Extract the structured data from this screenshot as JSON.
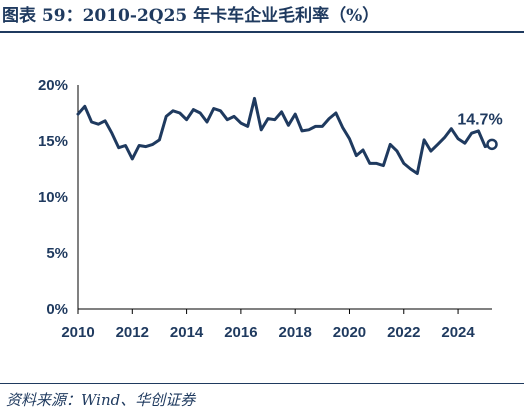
{
  "title": "图表 59：2010-2Q25 年卡车企业毛利率（%）",
  "source": "资料来源：Wind、华创证券",
  "colors": {
    "line": "#1f3a5f",
    "text": "#1f3a5f"
  },
  "chart_data": {
    "type": "line",
    "title": "",
    "xlabel": "",
    "ylabel": "",
    "x_tick_labels": [
      "2010",
      "2012",
      "2014",
      "2016",
      "2018",
      "2020",
      "2022",
      "2024"
    ],
    "y_tick_labels": [
      "0%",
      "5%",
      "10%",
      "15%",
      "20%"
    ],
    "xlim": [
      2010,
      2025.25
    ],
    "ylim": [
      0,
      20
    ],
    "series": [
      {
        "x": [
          2010.0,
          2010.25,
          2010.5,
          2010.75,
          2011.0,
          2011.25,
          2011.5,
          2011.75,
          2012.0,
          2012.25,
          2012.5,
          2012.75,
          2013.0,
          2013.25,
          2013.5,
          2013.75,
          2014.0,
          2014.25,
          2014.5,
          2014.75,
          2015.0,
          2015.25,
          2015.5,
          2015.75,
          2016.0,
          2016.25,
          2016.5,
          2016.75,
          2017.0,
          2017.25,
          2017.5,
          2017.75,
          2018.0,
          2018.25,
          2018.5,
          2018.75,
          2019.0,
          2019.25,
          2019.5,
          2019.75,
          2020.0,
          2020.25,
          2020.5,
          2020.75,
          2021.0,
          2021.25,
          2021.5,
          2021.75,
          2022.0,
          2022.25,
          2022.5,
          2022.75,
          2023.0,
          2023.25,
          2023.5,
          2023.75,
          2024.0,
          2024.25,
          2024.5,
          2024.75,
          2025.0,
          2025.25
        ],
        "values": [
          17.4,
          18.1,
          16.7,
          16.5,
          16.8,
          15.7,
          14.4,
          14.6,
          13.4,
          14.6,
          14.5,
          14.7,
          15.1,
          17.2,
          17.7,
          17.5,
          16.9,
          17.8,
          17.5,
          16.7,
          17.9,
          17.7,
          16.9,
          17.2,
          16.6,
          16.3,
          18.8,
          16.0,
          17.0,
          16.9,
          17.6,
          16.4,
          17.4,
          15.9,
          16.0,
          16.3,
          16.3,
          17.0,
          17.5,
          16.2,
          15.2,
          13.7,
          14.2,
          13.0,
          13.0,
          12.8,
          14.7,
          14.1,
          13.0,
          12.5,
          12.1,
          15.1,
          14.1,
          14.7,
          15.3,
          16.1,
          15.2,
          14.8,
          15.7,
          15.9,
          14.5,
          14.7
        ]
      }
    ],
    "annotation": {
      "text": "14.7%",
      "x": 2025.25,
      "y": 14.7
    }
  }
}
